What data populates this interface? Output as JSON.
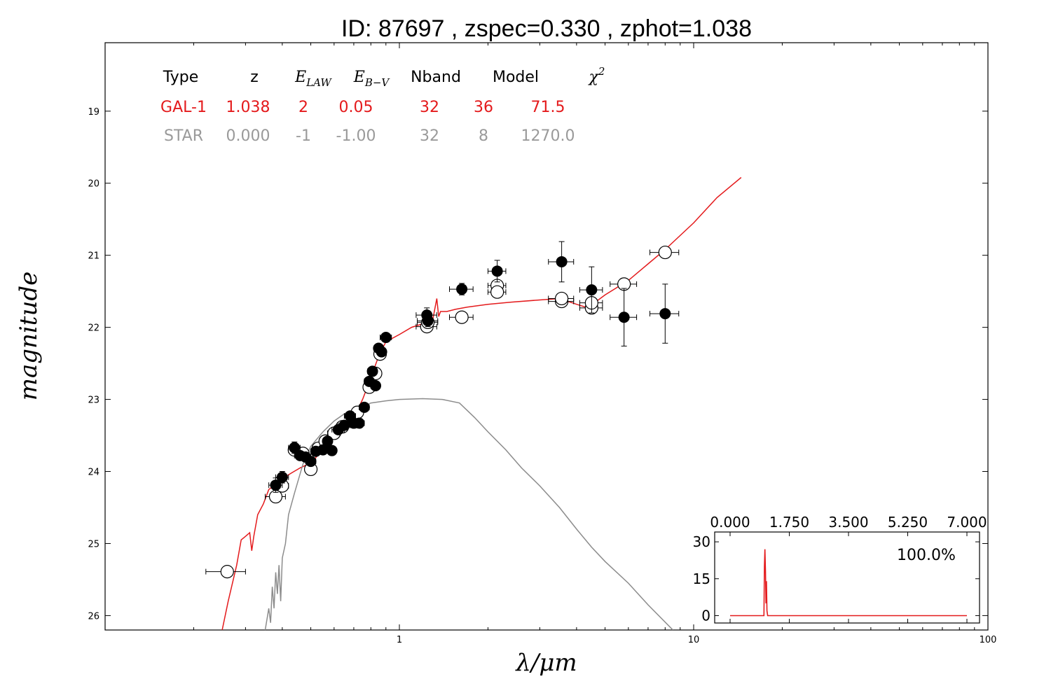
{
  "chart_data": [
    {
      "type": "scatter",
      "title": "ID:  87697 , zspec=0.330 , zphot=1.038",
      "xlabel": "λ/μm",
      "ylabel": "magnitude",
      "xscale": "log",
      "xlim": [
        0.1,
        100
      ],
      "ylim": [
        26.2,
        18.05
      ],
      "y_inverted": true,
      "x_ticks": [
        "1",
        "10",
        "100"
      ],
      "y_ticks": [
        "19",
        "20",
        "21",
        "22",
        "23",
        "24",
        "25",
        "26"
      ],
      "colors": {
        "galaxy": "#e41a1c",
        "star": "#8c8c8c",
        "points": "#000000"
      },
      "table": {
        "headers": [
          "Type",
          "z",
          "E_LAW",
          "E_B-V",
          "Nband",
          "Model",
          "χ²"
        ],
        "header_display": [
          {
            "text": "Type"
          },
          {
            "text": "z"
          },
          {
            "main": "E",
            "sub": "LAW"
          },
          {
            "main": "E",
            "sub": "B−V"
          },
          {
            "text": "Nband"
          },
          {
            "text": "Model"
          },
          {
            "main": "χ",
            "sup": "2"
          }
        ],
        "rows": [
          {
            "color": "#e41a1c",
            "cells": [
              "GAL-1",
              "1.038",
              "2",
              "0.05",
              "32",
              "36",
              "71.5"
            ]
          },
          {
            "color": "#9a9a9a",
            "cells": [
              "STAR",
              "0.000",
              "-1",
              "-1.00",
              "32",
              "8",
              "1270.0"
            ]
          }
        ]
      },
      "series": [
        {
          "name": "GAL-1",
          "style": "line",
          "color": "#e41a1c",
          "x": [
            0.25,
            0.262,
            0.28,
            0.29,
            0.3,
            0.31,
            0.315,
            0.32,
            0.33,
            0.345,
            0.36,
            0.38,
            0.4,
            0.43,
            0.46,
            0.5,
            0.55,
            0.6,
            0.65,
            0.7,
            0.75,
            0.8,
            0.85,
            0.9,
            1.0,
            1.1,
            1.2,
            1.25,
            1.3,
            1.34,
            1.36,
            1.38,
            1.45,
            1.55,
            1.7,
            2.0,
            2.4,
            3.0,
            3.5,
            4.0,
            4.3,
            4.6,
            5.0,
            6.0,
            7.0,
            8.0,
            10.0,
            12.0,
            14.5
          ],
          "y": [
            26.2,
            25.8,
            25.3,
            24.95,
            24.9,
            24.85,
            25.1,
            24.9,
            24.6,
            24.45,
            24.25,
            24.18,
            24.1,
            24.02,
            23.95,
            23.88,
            23.7,
            23.5,
            23.35,
            23.25,
            23.0,
            22.7,
            22.4,
            22.2,
            22.1,
            22.0,
            21.95,
            21.92,
            21.88,
            21.6,
            21.85,
            21.78,
            21.78,
            21.75,
            21.72,
            21.68,
            21.65,
            21.62,
            21.6,
            21.68,
            21.72,
            21.66,
            21.55,
            21.35,
            21.12,
            20.92,
            20.55,
            20.2,
            19.92
          ]
        },
        {
          "name": "STAR",
          "style": "line",
          "color": "#8c8c8c",
          "x": [
            0.35,
            0.36,
            0.365,
            0.37,
            0.375,
            0.38,
            0.385,
            0.39,
            0.395,
            0.4,
            0.41,
            0.42,
            0.44,
            0.47,
            0.5,
            0.55,
            0.6,
            0.65,
            0.7,
            0.75,
            0.8,
            0.9,
            1.0,
            1.2,
            1.4,
            1.6,
            1.8,
            2.0,
            2.3,
            2.6,
            3.0,
            3.5,
            4.0,
            4.5,
            5.0,
            6.0,
            7.0,
            8.5
          ],
          "y": [
            26.2,
            25.9,
            26.1,
            25.6,
            25.9,
            25.4,
            25.7,
            25.3,
            25.8,
            25.2,
            25.0,
            24.6,
            24.3,
            23.9,
            23.65,
            23.45,
            23.3,
            23.2,
            23.15,
            23.1,
            23.05,
            23.02,
            23.0,
            22.99,
            23.0,
            23.05,
            23.25,
            23.45,
            23.7,
            23.95,
            24.2,
            24.5,
            24.8,
            25.05,
            25.25,
            25.55,
            25.85,
            26.2
          ]
        },
        {
          "name": "observed",
          "style": "filled",
          "points": [
            [
              0.38,
              24.19,
              0.02,
              0.1
            ],
            [
              0.4,
              24.08,
              0.02,
              0.08
            ],
            [
              0.44,
              23.67,
              0.02,
              0.08
            ],
            [
              0.46,
              23.78,
              0.02,
              0.06
            ],
            [
              0.48,
              23.8,
              0.02,
              0.06
            ],
            [
              0.5,
              23.86,
              0.02,
              0.06
            ],
            [
              0.52,
              23.72,
              0.02,
              0.06
            ],
            [
              0.55,
              23.7,
              0.02,
              0.06
            ],
            [
              0.57,
              23.58,
              0.02,
              0.06
            ],
            [
              0.59,
              23.71,
              0.02,
              0.06
            ],
            [
              0.62,
              23.42,
              0.03,
              0.06
            ],
            [
              0.65,
              23.36,
              0.03,
              0.06
            ],
            [
              0.68,
              23.23,
              0.03,
              0.06
            ],
            [
              0.7,
              23.33,
              0.03,
              0.06
            ],
            [
              0.73,
              23.33,
              0.03,
              0.06
            ],
            [
              0.76,
              23.11,
              0.03,
              0.06
            ],
            [
              0.79,
              22.75,
              0.03,
              0.06
            ],
            [
              0.81,
              22.61,
              0.03,
              0.06
            ],
            [
              0.83,
              22.81,
              0.03,
              0.06
            ],
            [
              0.85,
              22.29,
              0.03,
              0.06
            ],
            [
              0.87,
              22.34,
              0.03,
              0.06
            ],
            [
              0.9,
              22.14,
              0.04,
              0.06
            ],
            [
              1.24,
              21.83,
              0.1,
              0.1
            ],
            [
              1.25,
              21.91,
              0.1,
              0.08
            ],
            [
              1.63,
              21.47,
              0.15,
              0.08
            ],
            [
              2.15,
              21.22,
              0.15,
              0.15
            ],
            [
              3.56,
              21.09,
              0.35,
              0.28
            ],
            [
              4.5,
              21.48,
              0.4,
              0.32
            ],
            [
              5.8,
              21.86,
              0.6,
              0.4
            ],
            [
              8.0,
              21.81,
              0.9,
              0.41
            ]
          ]
        },
        {
          "name": "model",
          "style": "open",
          "points": [
            [
              0.26,
              25.39,
              0.04
            ],
            [
              0.38,
              24.35,
              0.03
            ],
            [
              0.4,
              24.2,
              0.02
            ],
            [
              0.44,
              23.7,
              0.02
            ],
            [
              0.47,
              23.75,
              0.02
            ],
            [
              0.5,
              23.97,
              0.02
            ],
            [
              0.53,
              23.68,
              0.02
            ],
            [
              0.56,
              23.58,
              0.02
            ],
            [
              0.6,
              23.47,
              0.03
            ],
            [
              0.64,
              23.38,
              0.03
            ],
            [
              0.72,
              23.18,
              0.03
            ],
            [
              0.79,
              22.83,
              0.03
            ],
            [
              0.83,
              22.64,
              0.03
            ],
            [
              0.86,
              22.37,
              0.03
            ],
            [
              1.24,
              21.99,
              0.1
            ],
            [
              1.25,
              21.93,
              0.1
            ],
            [
              1.63,
              21.86,
              0.15
            ],
            [
              2.15,
              21.42,
              0.15
            ],
            [
              2.15,
              21.51,
              0.15
            ],
            [
              3.56,
              21.64,
              0.35
            ],
            [
              3.56,
              21.6,
              0.35
            ],
            [
              4.5,
              21.73,
              0.4
            ],
            [
              4.5,
              21.66,
              0.4
            ],
            [
              5.8,
              21.4,
              0.6
            ],
            [
              8.0,
              20.96,
              0.9
            ]
          ]
        }
      ]
    },
    {
      "type": "line",
      "xlim": [
        0,
        7
      ],
      "ylim": [
        -3,
        34
      ],
      "x_ticks": [
        "0.000",
        "1.750",
        "3.500",
        "5.250",
        "7.000"
      ],
      "y_ticks": [
        "0",
        "15",
        "30"
      ],
      "annotation": "100.0%",
      "series": [
        {
          "color": "#e41a1c",
          "x": [
            0.0,
            0.98,
            1.0,
            1.015,
            1.03,
            1.045,
            1.06,
            1.075,
            1.09,
            1.11,
            7.0
          ],
          "y": [
            0,
            0,
            0,
            20,
            27,
            18,
            5,
            14,
            2,
            0,
            0
          ]
        }
      ]
    }
  ]
}
